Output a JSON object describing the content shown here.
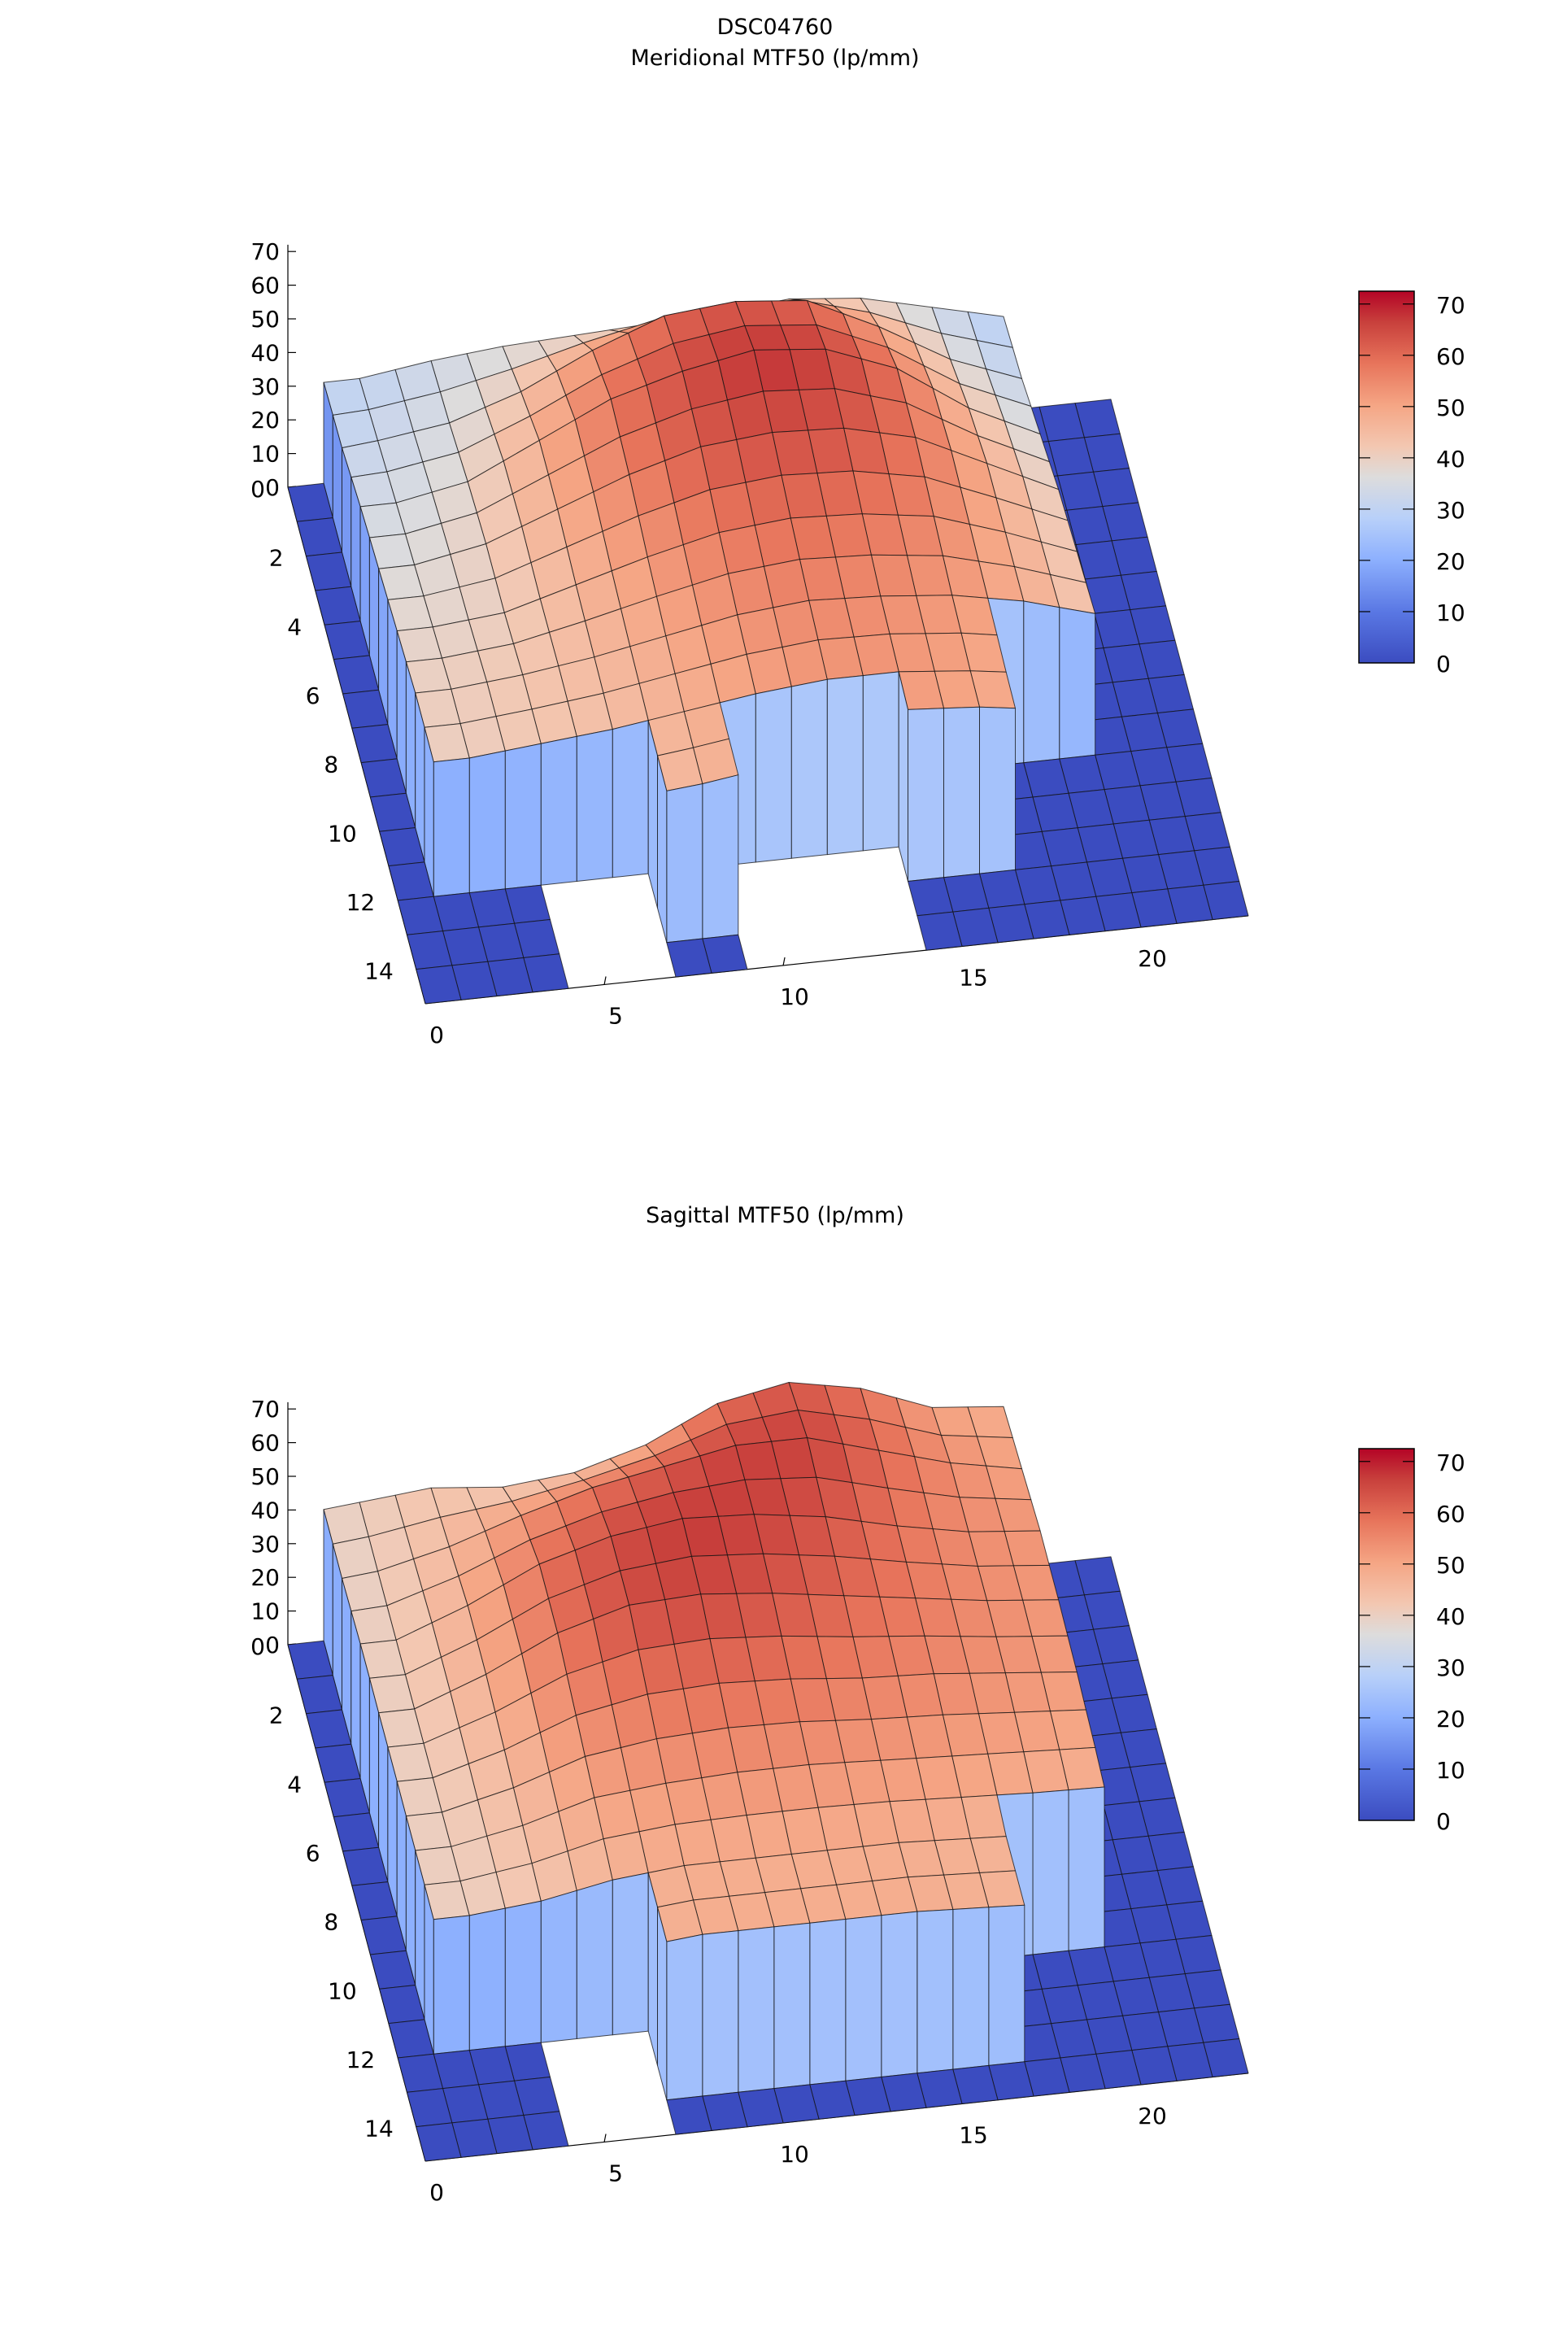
{
  "title": "DSC04760",
  "chart_data": [
    {
      "type": "surface3d",
      "title": "Meridional MTF50 (lp/mm)",
      "x_range": [
        0,
        23
      ],
      "y_range": [
        0,
        15
      ],
      "z_range": [
        0,
        72
      ],
      "x_ticks": [
        "0",
        "5",
        "10",
        "15",
        "20"
      ],
      "y_ticks": [
        "0",
        "2",
        "4",
        "6",
        "8",
        "10",
        "12",
        "14"
      ],
      "z_ticks": [
        "0",
        "10",
        "20",
        "30",
        "40",
        "50",
        "60",
        "70"
      ],
      "colorbar_ticks": [
        "0",
        "10",
        "20",
        "30",
        "40",
        "50",
        "60",
        "70"
      ],
      "grid_x": [
        0,
        2,
        4,
        6,
        8,
        10,
        12,
        14,
        16,
        18,
        20,
        22,
        24
      ],
      "grid_y": [
        0,
        2,
        4,
        6,
        8,
        10,
        12,
        14,
        16
      ],
      "z": [
        [
          30,
          30,
          33,
          35,
          36,
          37,
          38,
          40,
          38,
          33,
          28,
          30,
          30
        ],
        [
          30,
          32,
          35,
          42,
          52,
          60,
          62,
          60,
          50,
          38,
          30,
          30,
          30
        ],
        [
          34,
          34,
          38,
          48,
          58,
          64,
          68,
          66,
          58,
          44,
          34,
          32,
          32
        ],
        [
          36,
          36,
          40,
          48,
          56,
          62,
          64,
          63,
          58,
          48,
          38,
          34,
          34
        ],
        [
          38,
          38,
          40,
          46,
          52,
          57,
          59,
          58,
          55,
          48,
          40,
          36,
          36
        ],
        [
          40,
          40,
          42,
          45,
          49,
          53,
          55,
          54,
          52,
          48,
          42,
          38,
          38
        ],
        [
          40,
          40,
          42,
          44,
          47,
          50,
          52,
          52,
          50,
          47,
          42,
          38,
          38
        ],
        [
          40,
          40,
          42,
          44,
          46,
          49,
          50,
          50,
          49,
          46,
          42,
          38,
          38
        ],
        [
          40,
          40,
          42,
          44,
          46,
          49,
          50,
          50,
          49,
          46,
          42,
          38,
          38
        ]
      ],
      "zero_regions": [
        [
          0,
          1,
          0,
          15
        ],
        [
          1,
          4,
          12,
          15
        ],
        [
          7,
          9,
          14,
          15
        ],
        [
          14,
          20,
          13,
          15
        ],
        [
          17,
          20,
          10,
          13
        ],
        [
          20,
          23,
          0,
          15
        ]
      ],
      "missing_regions": [
        [
          4,
          7,
          12,
          15
        ],
        [
          9,
          14,
          12,
          15
        ]
      ]
    },
    {
      "type": "surface3d",
      "title": "Sagittal MTF50 (lp/mm)",
      "x_range": [
        0,
        23
      ],
      "y_range": [
        0,
        15
      ],
      "z_range": [
        0,
        72
      ],
      "x_ticks": [
        "0",
        "5",
        "10",
        "15",
        "20"
      ],
      "y_ticks": [
        "0",
        "2",
        "4",
        "6",
        "8",
        "10",
        "12",
        "14"
      ],
      "z_ticks": [
        "0",
        "10",
        "20",
        "30",
        "40",
        "50",
        "60",
        "70"
      ],
      "colorbar_ticks": [
        "0",
        "10",
        "20",
        "30",
        "40",
        "50",
        "60",
        "70"
      ],
      "grid_x": [
        0,
        2,
        4,
        6,
        8,
        10,
        12,
        14,
        16,
        18,
        20,
        22,
        24
      ],
      "grid_y": [
        0,
        2,
        4,
        6,
        8,
        10,
        12,
        14,
        16
      ],
      "z": [
        [
          38,
          40,
          42,
          40,
          42,
          48,
          58,
          62,
          58,
          50,
          48,
          48,
          48
        ],
        [
          38,
          40,
          45,
          52,
          58,
          62,
          66,
          66,
          60,
          54,
          50,
          50,
          50
        ],
        [
          40,
          40,
          48,
          58,
          64,
          67,
          66,
          63,
          58,
          54,
          52,
          50,
          50
        ],
        [
          40,
          40,
          48,
          58,
          64,
          65,
          63,
          60,
          57,
          54,
          52,
          50,
          50
        ],
        [
          40,
          40,
          46,
          54,
          58,
          59,
          58,
          56,
          55,
          53,
          51,
          49,
          49
        ],
        [
          40,
          40,
          44,
          50,
          52,
          53,
          53,
          52,
          51,
          50,
          49,
          48,
          48
        ],
        [
          40,
          40,
          42,
          46,
          48,
          48,
          48,
          48,
          47,
          46,
          46,
          46,
          46
        ],
        [
          40,
          40,
          42,
          46,
          48,
          48,
          48,
          48,
          47,
          46,
          46,
          46,
          46
        ],
        [
          40,
          40,
          42,
          46,
          48,
          48,
          48,
          48,
          47,
          46,
          46,
          46,
          46
        ]
      ],
      "zero_regions": [
        [
          0,
          1,
          0,
          15
        ],
        [
          1,
          4,
          12,
          15
        ],
        [
          7,
          20,
          14,
          15
        ],
        [
          17,
          20,
          11,
          14
        ],
        [
          20,
          23,
          0,
          15
        ]
      ],
      "missing_regions": [
        [
          4,
          7,
          12,
          15
        ]
      ]
    }
  ],
  "colormap": [
    "#3b4cc0",
    "#5a78e4",
    "#8db0fe",
    "#b8d0f9",
    "#dddcdc",
    "#f3c7b1",
    "#f5a584",
    "#e7745b",
    "#c8403c",
    "#b40426"
  ]
}
